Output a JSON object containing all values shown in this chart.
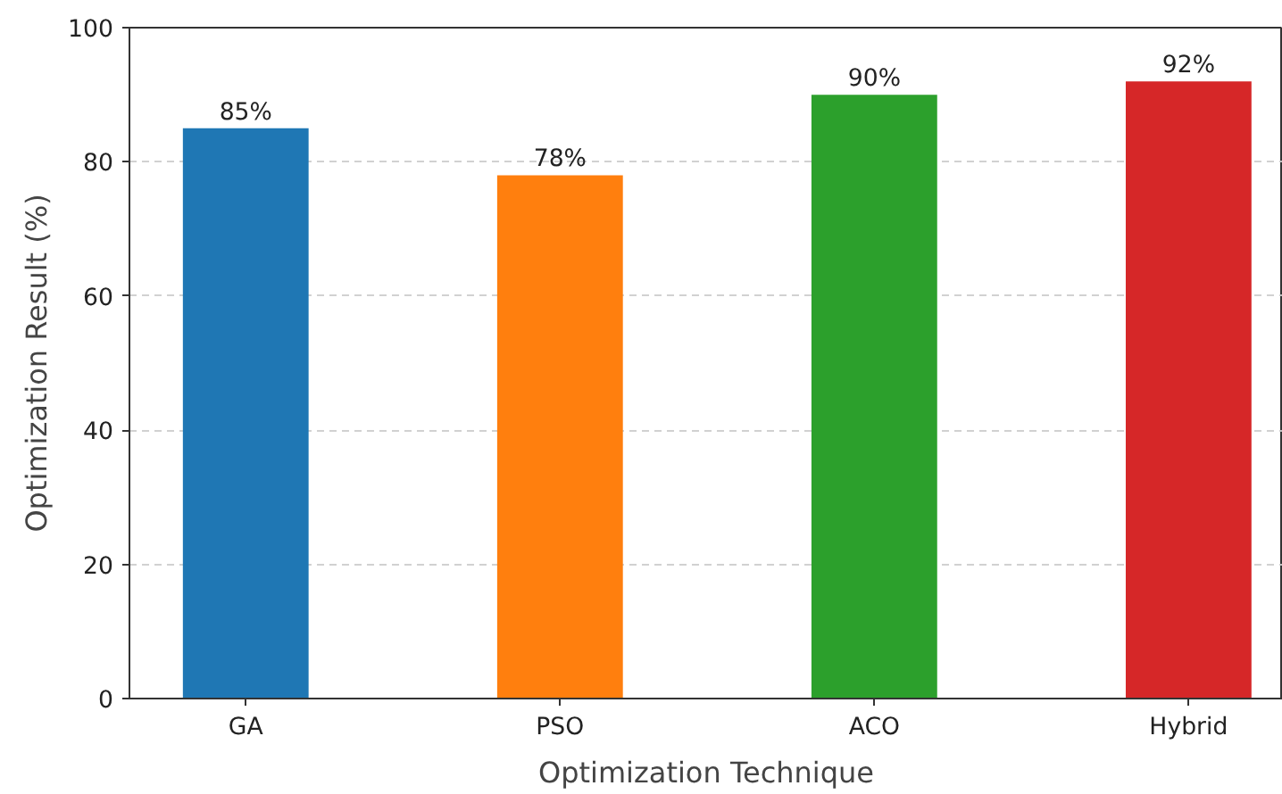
{
  "chart_data": {
    "type": "bar",
    "xlabel": "Optimization Technique",
    "ylabel": "Optimization Result (%)",
    "categories": [
      "GA",
      "PSO",
      "ACO",
      "Hybrid"
    ],
    "values": [
      85,
      78,
      90,
      92
    ],
    "colors": [
      "#1f77b4",
      "#ff7f0e",
      "#2ca02c",
      "#d62728"
    ],
    "value_labels": [
      "85%",
      "78%",
      "90%",
      "92%"
    ],
    "ylim": [
      0,
      100
    ],
    "yticks": [
      0,
      20,
      40,
      60,
      80,
      100
    ],
    "grid": "y"
  }
}
